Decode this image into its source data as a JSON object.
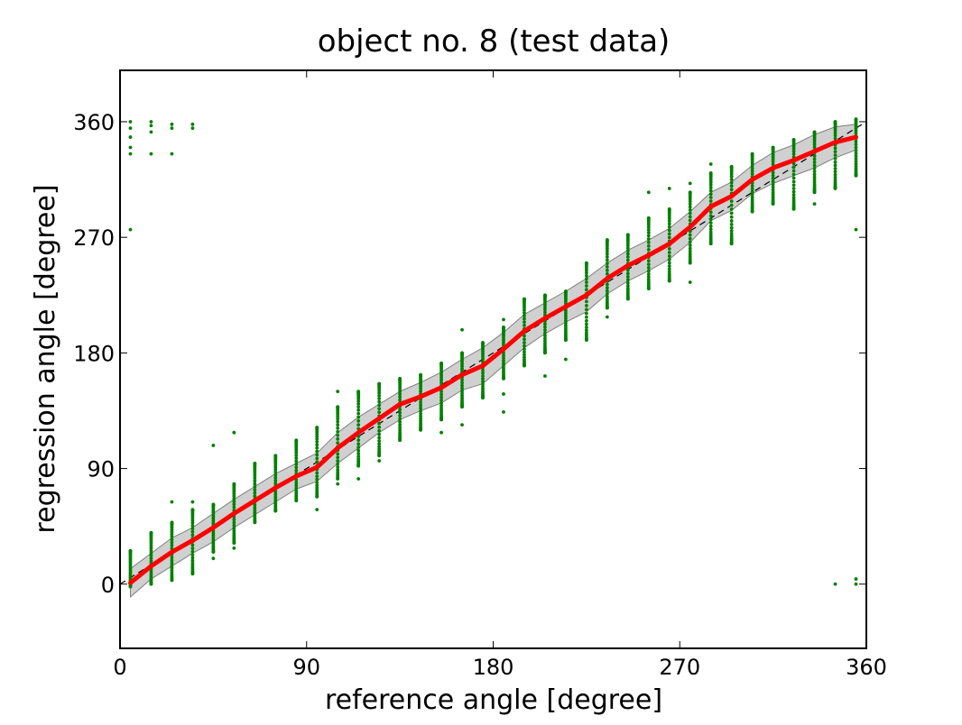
{
  "chart_data": {
    "type": "scatter",
    "title": "object no. 8 (test data)",
    "xlabel": "reference angle [degree]",
    "ylabel": "regression angle [degree]",
    "xlim": [
      0,
      360
    ],
    "ylim": [
      -50,
      400
    ],
    "xticks": [
      "0",
      "90",
      "180",
      "270",
      "360"
    ],
    "yticks": [
      "0",
      "90",
      "180",
      "270",
      "360"
    ],
    "grid": false,
    "colors": {
      "points": "#008000",
      "mean_line": "#ff0000",
      "band_fill": "#c8c8c8",
      "band_edge": "#808080",
      "identity_line": "#000000"
    },
    "mean_line": {
      "x": [
        5,
        15,
        25,
        35,
        45,
        55,
        65,
        75,
        85,
        95,
        105,
        115,
        125,
        135,
        145,
        155,
        165,
        175,
        185,
        195,
        205,
        215,
        225,
        235,
        245,
        255,
        265,
        275,
        285,
        295,
        305,
        315,
        325,
        335,
        345,
        355
      ],
      "y": [
        1,
        14,
        25,
        34,
        44,
        55,
        65,
        75,
        84,
        91,
        106,
        118,
        129,
        140,
        146,
        153,
        163,
        170,
        183,
        197,
        207,
        216,
        225,
        238,
        248,
        256,
        265,
        278,
        294,
        302,
        315,
        324,
        330,
        337,
        344,
        348
      ]
    },
    "band": {
      "x": [
        5,
        15,
        25,
        35,
        45,
        55,
        65,
        75,
        85,
        95,
        105,
        115,
        125,
        135,
        145,
        155,
        165,
        175,
        185,
        195,
        205,
        215,
        225,
        235,
        245,
        255,
        265,
        275,
        285,
        295,
        305,
        315,
        325,
        335,
        345,
        355
      ],
      "upper": [
        12,
        24,
        36,
        44,
        55,
        66,
        76,
        86,
        94,
        102,
        118,
        130,
        140,
        150,
        157,
        165,
        175,
        184,
        196,
        210,
        219,
        228,
        238,
        250,
        260,
        268,
        277,
        290,
        305,
        313,
        326,
        336,
        342,
        350,
        356,
        358
      ],
      "lower": [
        -10,
        4,
        14,
        24,
        33,
        44,
        54,
        64,
        74,
        80,
        94,
        106,
        118,
        128,
        135,
        141,
        151,
        156,
        170,
        184,
        195,
        204,
        212,
        226,
        236,
        244,
        253,
        266,
        283,
        291,
        304,
        312,
        318,
        324,
        332,
        338
      ]
    },
    "identity_line": {
      "x": [
        0,
        360
      ],
      "y": [
        0,
        360
      ]
    },
    "scatter": {
      "columns": [
        {
          "x": 5,
          "min": -2,
          "max": 26,
          "outliers": [
            276,
            335,
            340,
            348,
            355,
            360
          ]
        },
        {
          "x": 15,
          "min": 0,
          "max": 40,
          "outliers": [
            335,
            352,
            357,
            360
          ]
        },
        {
          "x": 25,
          "min": 3,
          "max": 48,
          "outliers": [
            64,
            335,
            355,
            358
          ]
        },
        {
          "x": 35,
          "min": 8,
          "max": 58,
          "outliers": [
            64,
            355,
            358
          ]
        },
        {
          "x": 45,
          "min": 25,
          "max": 62,
          "outliers": [
            20,
            108
          ]
        },
        {
          "x": 55,
          "min": 32,
          "max": 78,
          "outliers": [
            28,
            118
          ]
        },
        {
          "x": 65,
          "min": 48,
          "max": 94,
          "outliers": []
        },
        {
          "x": 75,
          "min": 57,
          "max": 100,
          "outliers": []
        },
        {
          "x": 85,
          "min": 65,
          "max": 112,
          "outliers": []
        },
        {
          "x": 95,
          "min": 68,
          "max": 122,
          "outliers": [
            58
          ]
        },
        {
          "x": 105,
          "min": 82,
          "max": 138,
          "outliers": [
            78,
            150
          ]
        },
        {
          "x": 115,
          "min": 92,
          "max": 150,
          "outliers": [
            82
          ]
        },
        {
          "x": 125,
          "min": 100,
          "max": 156,
          "outliers": [
            96
          ]
        },
        {
          "x": 135,
          "min": 112,
          "max": 160,
          "outliers": []
        },
        {
          "x": 145,
          "min": 120,
          "max": 163,
          "outliers": []
        },
        {
          "x": 155,
          "min": 128,
          "max": 172,
          "outliers": [
            118
          ]
        },
        {
          "x": 165,
          "min": 138,
          "max": 180,
          "outliers": [
            124,
            198
          ]
        },
        {
          "x": 175,
          "min": 145,
          "max": 188,
          "outliers": []
        },
        {
          "x": 185,
          "min": 160,
          "max": 200,
          "outliers": [
            134,
            148,
            206
          ]
        },
        {
          "x": 195,
          "min": 170,
          "max": 222,
          "outliers": []
        },
        {
          "x": 205,
          "min": 180,
          "max": 225,
          "outliers": [
            162
          ]
        },
        {
          "x": 215,
          "min": 190,
          "max": 228,
          "outliers": [
            175
          ]
        },
        {
          "x": 225,
          "min": 190,
          "max": 250,
          "outliers": []
        },
        {
          "x": 235,
          "min": 215,
          "max": 268,
          "outliers": [
            208
          ]
        },
        {
          "x": 245,
          "min": 222,
          "max": 272,
          "outliers": []
        },
        {
          "x": 255,
          "min": 230,
          "max": 285,
          "outliers": [
            305
          ]
        },
        {
          "x": 265,
          "min": 236,
          "max": 292,
          "outliers": [
            308
          ]
        },
        {
          "x": 275,
          "min": 250,
          "max": 305,
          "outliers": [
            235,
            312
          ]
        },
        {
          "x": 285,
          "min": 265,
          "max": 320,
          "outliers": [
            327
          ]
        },
        {
          "x": 295,
          "min": 265,
          "max": 325,
          "outliers": []
        },
        {
          "x": 305,
          "min": 290,
          "max": 335,
          "outliers": []
        },
        {
          "x": 315,
          "min": 296,
          "max": 340,
          "outliers": []
        },
        {
          "x": 325,
          "min": 292,
          "max": 346,
          "outliers": []
        },
        {
          "x": 335,
          "min": 305,
          "max": 352,
          "outliers": [
            296
          ]
        },
        {
          "x": 345,
          "min": 308,
          "max": 360,
          "outliers": [
            0
          ]
        },
        {
          "x": 355,
          "min": 318,
          "max": 362,
          "outliers": [
            0,
            4,
            276
          ]
        }
      ]
    }
  }
}
